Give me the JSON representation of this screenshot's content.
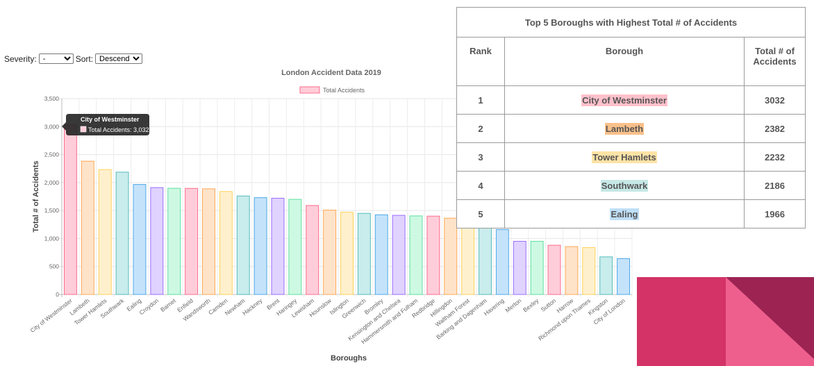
{
  "controls": {
    "severity_label": "Severity:",
    "severity_value": "-",
    "sort_label": "Sort:",
    "sort_value": "Descending"
  },
  "chart_data": {
    "type": "bar",
    "title": "London Accident Data 2019",
    "xlabel": "Boroughs",
    "ylabel": "Total # of Accidents",
    "ylim": [
      0,
      3500
    ],
    "yticks": [
      "0",
      "500",
      "1,000",
      "1,500",
      "2,000",
      "2,500",
      "3,000",
      "3,500"
    ],
    "grid": true,
    "legend_position": "top",
    "series": [
      {
        "name": "Total Accidents",
        "values": [
          3032,
          2382,
          2232,
          2186,
          1966,
          1910,
          1898,
          1896,
          1888,
          1840,
          1760,
          1730,
          1720,
          1700,
          1590,
          1508,
          1470,
          1450,
          1424,
          1414,
          1404,
          1400,
          1364,
          1320,
          1214,
          1160,
          950,
          950,
          880,
          856,
          838,
          672,
          642
        ]
      }
    ],
    "categories": [
      "City of Westminster",
      "Lambeth",
      "Tower Hamlets",
      "Southwark",
      "Ealing",
      "Croydon",
      "Barnet",
      "Enfield",
      "Wandsworth",
      "Camden",
      "Newham",
      "Hackney",
      "Brent",
      "Haringey",
      "Lewisham",
      "Hounslow",
      "Islington",
      "Greenwich",
      "Bromley",
      "Kensington and Chelsea",
      "Hammersmith and Fulham",
      "Redbridge",
      "Hillingdon",
      "Waltham Forest",
      "Barking and Dagenham",
      "Havering",
      "Merton",
      "Bexley",
      "Sutton",
      "Harrow",
      "Richmond upon Thames",
      "Kingston",
      "City of London"
    ],
    "palette": [
      {
        "fill": "#ffcdd9",
        "stroke": "#ff6c8c"
      },
      {
        "fill": "#ffe3c9",
        "stroke": "#ffa855"
      },
      {
        "fill": "#fff0cd",
        "stroke": "#ffd257"
      },
      {
        "fill": "#c9ecec",
        "stroke": "#55bcbc"
      },
      {
        "fill": "#c4e3fb",
        "stroke": "#4ea8e8"
      },
      {
        "fill": "#e0d3ff",
        "stroke": "#9a6cff"
      },
      {
        "fill": "#cdf9e2",
        "stroke": "#5ee0a0"
      }
    ],
    "tooltip": {
      "title": "City of Westminster",
      "line": "Total Accidents: 3,032"
    }
  },
  "top5": {
    "title": "Top 5 Boroughs with Highest Total # of Accidents",
    "headers": {
      "rank": "Rank",
      "borough": "Borough",
      "total_line1": "Total # of",
      "total_line2": "Accidents"
    },
    "rows": [
      {
        "rank": "1",
        "borough": "City of Westminster",
        "total": "3032",
        "color": "#ffc1cc"
      },
      {
        "rank": "2",
        "borough": "Lambeth",
        "total": "2382",
        "color": "#f9c08a"
      },
      {
        "rank": "3",
        "borough": "Tower Hamlets",
        "total": "2232",
        "color": "#fde3a6"
      },
      {
        "rank": "4",
        "borough": "Southwark",
        "total": "2186",
        "color": "#c6e8e6"
      },
      {
        "rank": "5",
        "borough": "Ealing",
        "total": "1966",
        "color": "#bfdff7"
      }
    ]
  },
  "decoration": {
    "colors": [
      "#d33366",
      "#9c2352",
      "#ee5f8e"
    ]
  }
}
